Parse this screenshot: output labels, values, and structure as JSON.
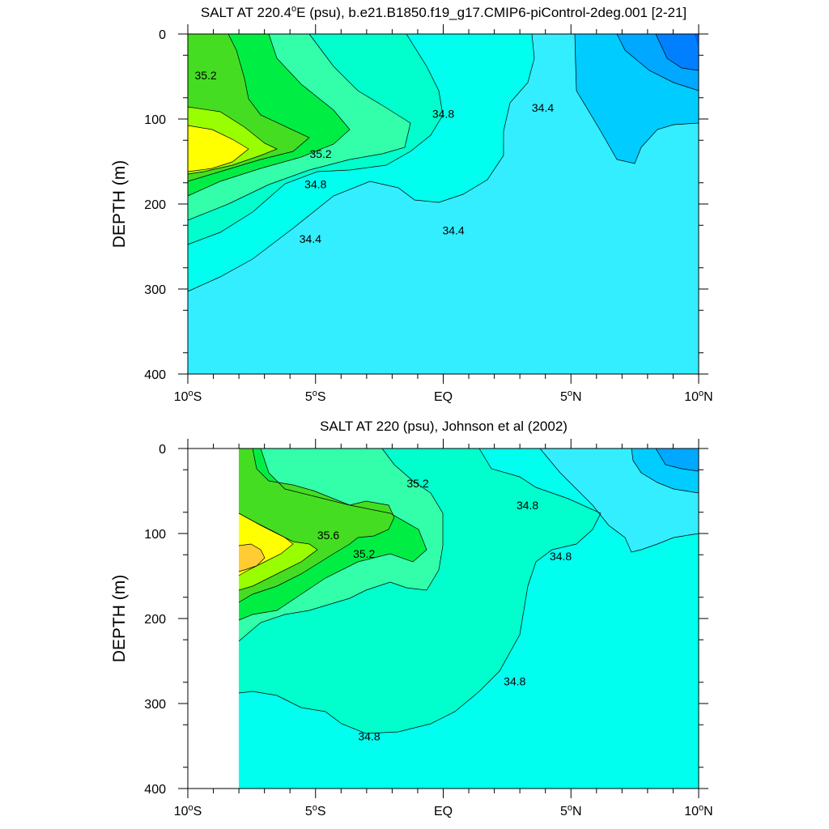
{
  "chart_data": [
    {
      "type": "contour",
      "title": "SALT AT 220.4°E (psu), b.e21.B1850.f19_g17.CMIP6-piControl-2deg.001 [2-21]",
      "title_main": "SALT AT 220.4",
      "title_sup": "o",
      "title_rest": "E (psu), b.e21.B1850.f19_g17.CMIP6-piControl-2deg.001 [2-21]",
      "ylabel": "DEPTH (m)",
      "xlabel": "",
      "x_range": [
        -10,
        10
      ],
      "y_range": [
        0,
        400
      ],
      "y_reversed": true,
      "grid": false,
      "x_ticks": [
        {
          "v": -10,
          "main": "10",
          "sup": "o",
          "rest": "S"
        },
        {
          "v": -5,
          "main": "5",
          "sup": "o",
          "rest": "S"
        },
        {
          "v": 0,
          "main": "EQ",
          "sup": "",
          "rest": ""
        },
        {
          "v": 5,
          "main": "5",
          "sup": "o",
          "rest": "N"
        },
        {
          "v": 10,
          "main": "10",
          "sup": "o",
          "rest": "N"
        }
      ],
      "y_ticks": [
        {
          "v": 0,
          "label": "0"
        },
        {
          "v": 100,
          "label": "100"
        },
        {
          "v": 200,
          "label": "200"
        },
        {
          "v": 300,
          "label": "300"
        },
        {
          "v": 400,
          "label": "400"
        }
      ],
      "contour_levels": [
        34.0,
        34.2,
        34.4,
        34.6,
        34.8,
        35.0,
        35.2,
        35.4,
        35.6
      ],
      "contour_labels": [
        {
          "text": "35.2",
          "lat": -9.3,
          "depth": 50
        },
        {
          "text": "34.8",
          "lat": 0.0,
          "depth": 95
        },
        {
          "text": "34.4",
          "lat": 3.9,
          "depth": 88
        },
        {
          "text": "35.2",
          "lat": -4.8,
          "depth": 142
        },
        {
          "text": "34.8",
          "lat": -5.0,
          "depth": 178
        },
        {
          "text": "34.4",
          "lat": -5.2,
          "depth": 242
        },
        {
          "text": "34.4",
          "lat": 0.4,
          "depth": 232
        }
      ]
    },
    {
      "type": "contour",
      "title": "SALT AT 220 (psu), Johnson et al (2002)",
      "title_main": "SALT AT 220 (psu), Johnson et al (2002)",
      "title_sup": "",
      "title_rest": "",
      "ylabel": "DEPTH (m)",
      "xlabel": "",
      "x_range": [
        -10,
        10
      ],
      "y_range": [
        0,
        400
      ],
      "y_reversed": true,
      "grid": false,
      "data_coverage_lat": [
        -8,
        10
      ],
      "x_ticks": [
        {
          "v": -10,
          "main": "10",
          "sup": "o",
          "rest": "S"
        },
        {
          "v": -5,
          "main": "5",
          "sup": "o",
          "rest": "S"
        },
        {
          "v": 0,
          "main": "EQ",
          "sup": "",
          "rest": ""
        },
        {
          "v": 5,
          "main": "5",
          "sup": "o",
          "rest": "N"
        },
        {
          "v": 10,
          "main": "10",
          "sup": "o",
          "rest": "N"
        }
      ],
      "y_ticks": [
        {
          "v": 0,
          "label": "0"
        },
        {
          "v": 100,
          "label": "100"
        },
        {
          "v": 200,
          "label": "200"
        },
        {
          "v": 300,
          "label": "300"
        },
        {
          "v": 400,
          "label": "400"
        }
      ],
      "contour_levels": [
        34.4,
        34.6,
        34.8,
        35.0,
        35.2,
        35.4,
        35.6,
        35.8
      ],
      "contour_labels": [
        {
          "text": "35.2",
          "lat": -1.0,
          "depth": 42
        },
        {
          "text": "34.8",
          "lat": 3.3,
          "depth": 68
        },
        {
          "text": "35.6",
          "lat": -4.5,
          "depth": 103
        },
        {
          "text": "35.2",
          "lat": -3.1,
          "depth": 125
        },
        {
          "text": "34.8",
          "lat": 4.6,
          "depth": 128
        },
        {
          "text": "34.8",
          "lat": 2.8,
          "depth": 275
        },
        {
          "text": "34.8",
          "lat": -2.9,
          "depth": 340
        }
      ]
    }
  ],
  "palette": {
    "s33_8": "#0060ff",
    "s34_0": "#0080ff",
    "s34_2": "#00a8ff",
    "s34_4": "#00ccff",
    "s34_6": "#33eeff",
    "s34_8": "#00ffee",
    "s35_0": "#00ffcc",
    "s35_2": "#33ffaa",
    "s35_4": "#00ee44",
    "s35_6": "#44dd22",
    "s35_8": "#99ff00",
    "s36_0": "#ffff00",
    "s36_2": "#ffcc33",
    "line": "#000000"
  }
}
